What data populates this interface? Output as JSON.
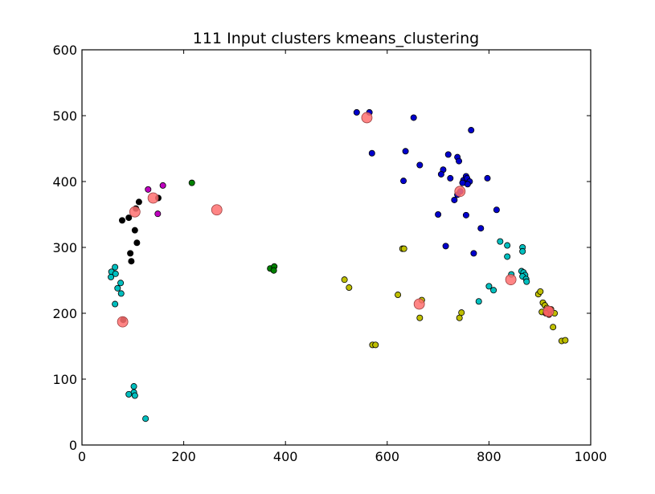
{
  "chart_data": {
    "type": "scatter",
    "title": "111 Input clusters kmeans_clustering",
    "xlabel": "",
    "ylabel": "",
    "xlim": [
      0,
      1000
    ],
    "ylim": [
      0,
      600
    ],
    "xticks": [
      0,
      200,
      400,
      600,
      800,
      1000
    ],
    "yticks": [
      0,
      100,
      200,
      300,
      400,
      500,
      600
    ],
    "grid": false,
    "legend": "none",
    "series": [
      {
        "color": "#0000cc",
        "points": [
          [
            540,
            505
          ],
          [
            565,
            505
          ],
          [
            652,
            497
          ],
          [
            570,
            443
          ],
          [
            636,
            446
          ],
          [
            664,
            425
          ],
          [
            720,
            441
          ],
          [
            738,
            437
          ],
          [
            741,
            431
          ],
          [
            724,
            405
          ],
          [
            710,
            418
          ],
          [
            706,
            411
          ],
          [
            750,
            402
          ],
          [
            755,
            408
          ],
          [
            757,
            405
          ],
          [
            762,
            400
          ],
          [
            758,
            396
          ],
          [
            748,
            398
          ],
          [
            797,
            405
          ],
          [
            632,
            401
          ],
          [
            732,
            372
          ],
          [
            738,
            380
          ],
          [
            744,
            385
          ],
          [
            755,
            349
          ],
          [
            700,
            350
          ],
          [
            815,
            357
          ],
          [
            784,
            329
          ],
          [
            715,
            302
          ],
          [
            770,
            291
          ],
          [
            765,
            478
          ]
        ]
      },
      {
        "color": "#00bfbf",
        "points": [
          [
            58,
            263
          ],
          [
            65,
            270
          ],
          [
            57,
            255
          ],
          [
            66,
            260
          ],
          [
            70,
            238
          ],
          [
            76,
            246
          ],
          [
            77,
            230
          ],
          [
            65,
            214
          ],
          [
            102,
            89
          ],
          [
            102,
            80
          ],
          [
            104,
            75
          ],
          [
            92,
            77
          ],
          [
            125,
            40
          ],
          [
            822,
            309
          ],
          [
            836,
            303
          ],
          [
            866,
            300
          ],
          [
            866,
            294
          ],
          [
            836,
            286
          ],
          [
            864,
            264
          ],
          [
            868,
            262
          ],
          [
            871,
            258
          ],
          [
            866,
            256
          ],
          [
            873,
            252
          ],
          [
            874,
            248
          ],
          [
            844,
            259
          ],
          [
            800,
            241
          ],
          [
            809,
            235
          ],
          [
            780,
            218
          ]
        ]
      },
      {
        "color": "#000000",
        "points": [
          [
            79,
            341
          ],
          [
            92,
            345
          ],
          [
            106,
            359
          ],
          [
            112,
            369
          ],
          [
            104,
            326
          ],
          [
            108,
            307
          ],
          [
            95,
            291
          ],
          [
            97,
            279
          ],
          [
            81,
            190
          ],
          [
            150,
            375
          ]
        ]
      },
      {
        "color": "#bf00bf",
        "points": [
          [
            130,
            388
          ],
          [
            159,
            394
          ],
          [
            149,
            351
          ]
        ]
      },
      {
        "color": "#008000",
        "points": [
          [
            216,
            398
          ],
          [
            370,
            268
          ],
          [
            378,
            271
          ],
          [
            377,
            265
          ]
        ]
      },
      {
        "color": "#bfbf00",
        "points": [
          [
            516,
            251
          ],
          [
            525,
            239
          ],
          [
            621,
            228
          ],
          [
            630,
            298
          ],
          [
            633,
            298
          ],
          [
            668,
            220
          ],
          [
            664,
            193
          ],
          [
            571,
            152
          ],
          [
            577,
            152
          ],
          [
            742,
            193
          ],
          [
            746,
            201
          ],
          [
            897,
            229
          ],
          [
            901,
            233
          ],
          [
            906,
            216
          ],
          [
            910,
            212
          ],
          [
            904,
            202
          ],
          [
            914,
            208
          ],
          [
            917,
            200
          ],
          [
            922,
            206
          ],
          [
            929,
            200
          ],
          [
            926,
            179
          ],
          [
            943,
            158
          ],
          [
            950,
            159
          ]
        ]
      },
      {
        "color": "#cc0000",
        "points": [
          [
            913,
            204
          ],
          [
            918,
            198
          ],
          [
            912,
            200
          ],
          [
            920,
            206
          ]
        ]
      }
    ],
    "centroids": {
      "color": "#ff7070",
      "points": [
        [
          560,
          497
        ],
        [
          743,
          385
        ],
        [
          140,
          375
        ],
        [
          104,
          354
        ],
        [
          265,
          357
        ],
        [
          663,
          214
        ],
        [
          843,
          251
        ],
        [
          80,
          187
        ],
        [
          917,
          203
        ]
      ]
    }
  }
}
